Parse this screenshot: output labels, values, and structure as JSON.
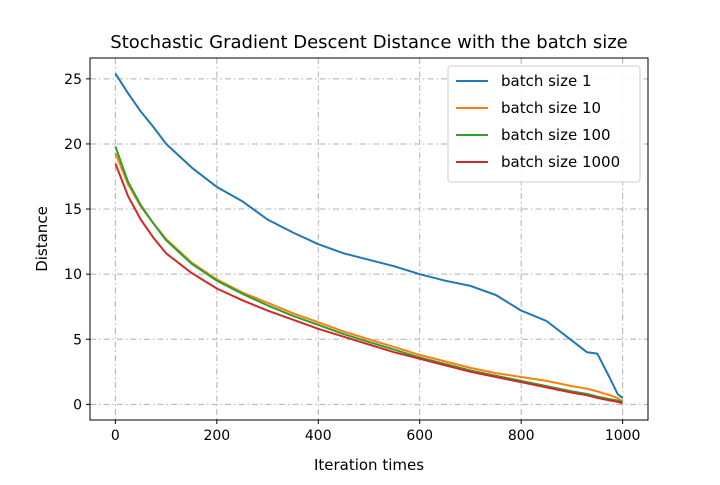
{
  "chart_data": {
    "type": "line",
    "title": "Stochastic Gradient Descent Distance with the batch size",
    "xlabel": "Iteration times",
    "ylabel": "Distance",
    "xlim": [
      -50,
      1050
    ],
    "ylim": [
      -1.2,
      26.6
    ],
    "xticks": [
      0,
      200,
      400,
      600,
      800,
      1000
    ],
    "yticks": [
      0,
      5,
      10,
      15,
      20,
      25
    ],
    "grid": true,
    "grid_style": "dashdot",
    "legend_position": "top-right",
    "x": [
      0,
      25,
      50,
      75,
      100,
      150,
      200,
      250,
      300,
      350,
      400,
      450,
      500,
      550,
      600,
      650,
      700,
      750,
      800,
      850,
      900,
      930,
      950,
      975,
      990,
      1000
    ],
    "series": [
      {
        "name": "batch size 1",
        "color": "#1f77b4",
        "values": [
          25.4,
          23.9,
          22.5,
          21.3,
          20.0,
          18.2,
          16.7,
          15.6,
          14.2,
          13.2,
          12.3,
          11.6,
          11.1,
          10.6,
          10.0,
          9.5,
          9.1,
          8.4,
          7.2,
          6.4,
          4.9,
          4.0,
          3.9,
          2.0,
          0.8,
          0.5
        ]
      },
      {
        "name": "batch size 10",
        "color": "#ff7f0e",
        "values": [
          19.3,
          16.9,
          15.2,
          13.9,
          12.7,
          10.9,
          9.6,
          8.6,
          7.8,
          7.0,
          6.3,
          5.6,
          5.0,
          4.4,
          3.8,
          3.3,
          2.8,
          2.4,
          2.1,
          1.8,
          1.4,
          1.2,
          1.0,
          0.7,
          0.5,
          0.2
        ]
      },
      {
        "name": "batch size 100",
        "color": "#2ca02c",
        "values": [
          19.8,
          17.1,
          15.3,
          13.9,
          12.6,
          10.8,
          9.5,
          8.5,
          7.6,
          6.8,
          6.1,
          5.4,
          4.8,
          4.2,
          3.6,
          3.1,
          2.6,
          2.2,
          1.8,
          1.4,
          1.0,
          0.8,
          0.6,
          0.4,
          0.3,
          0.2
        ]
      },
      {
        "name": "batch size 1000",
        "color": "#d62728",
        "values": [
          18.5,
          16.0,
          14.2,
          12.8,
          11.6,
          10.1,
          8.9,
          8.0,
          7.2,
          6.5,
          5.8,
          5.2,
          4.6,
          4.0,
          3.5,
          3.0,
          2.5,
          2.1,
          1.7,
          1.3,
          0.9,
          0.7,
          0.5,
          0.3,
          0.2,
          0.1
        ]
      }
    ]
  }
}
